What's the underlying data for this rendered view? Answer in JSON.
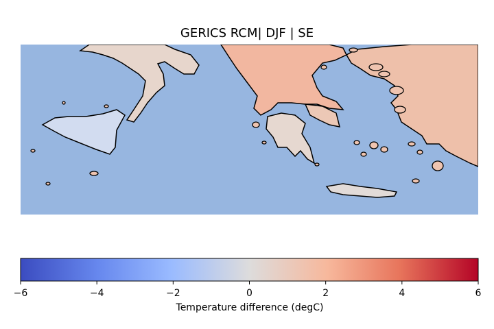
{
  "title": "GERICS RCM| DJF | SE",
  "colorbar": {
    "label": "Temperature difference (degC)",
    "min": -6,
    "max": 6,
    "ticks": [
      "−6",
      "−4",
      "−2",
      "0",
      "2",
      "4",
      "6"
    ],
    "colormap": "coolwarm",
    "colors": [
      "#3b4cc0",
      "#7b9ff9",
      "#c0d4f5",
      "#dddcdc",
      "#f2cbb7",
      "#ee8468",
      "#b40426"
    ]
  },
  "map": {
    "sea_color": "#97b6e0",
    "coastline_color": "#000000",
    "regions": [
      {
        "name": "southern-italy",
        "anomaly": 0.5
      },
      {
        "name": "sicily",
        "anomaly": -1.5
      },
      {
        "name": "western-greece",
        "anomaly": 2.0
      },
      {
        "name": "peloponnese",
        "anomaly": 0.5
      },
      {
        "name": "northern-greece-balkans",
        "anomaly": 3.0
      },
      {
        "name": "western-turkey",
        "anomaly": 3.5
      },
      {
        "name": "crete",
        "anomaly": 0.3
      },
      {
        "name": "aegean-islands",
        "anomaly": 1.5
      }
    ]
  }
}
